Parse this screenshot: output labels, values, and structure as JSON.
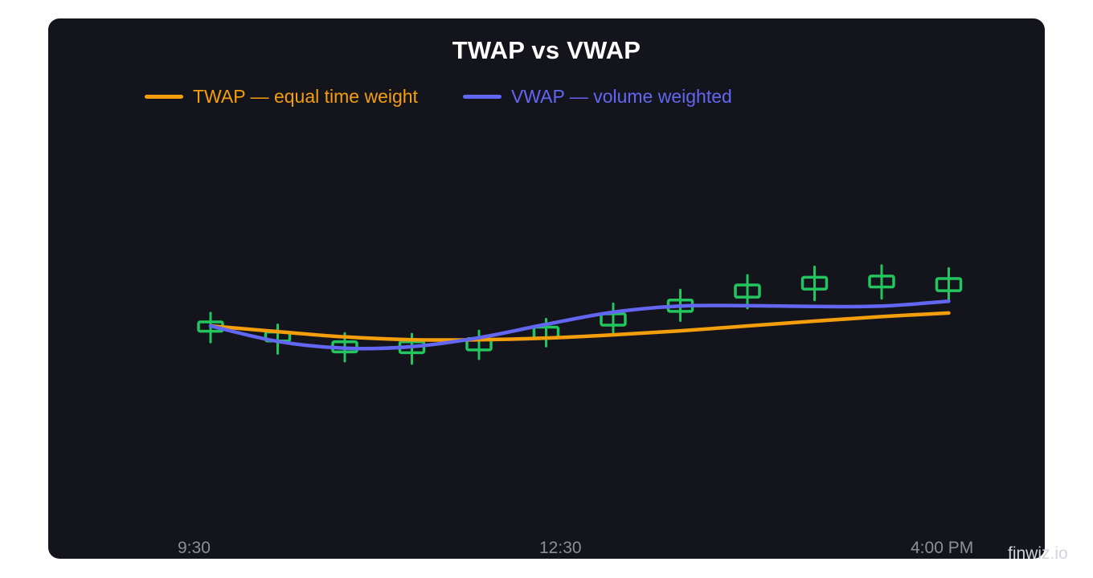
{
  "chart_data": {
    "type": "line",
    "title": "TWAP vs VWAP",
    "xlabel": "",
    "ylabel": "",
    "x_tick_labels": [
      "9:30",
      "12:30",
      "4:00 PM"
    ],
    "legend_position": "top-left",
    "grid": false,
    "ylim": [
      0,
      100
    ],
    "candles": {
      "color": "#22c55e",
      "values": [
        {
          "open": 50.3,
          "close": 48.0,
          "high": 52.5,
          "low": 45.3
        },
        {
          "open": 47.8,
          "close": 45.6,
          "high": 49.6,
          "low": 42.5
        },
        {
          "open": 45.4,
          "close": 42.9,
          "high": 47.5,
          "low": 40.6
        },
        {
          "open": 45.4,
          "close": 42.7,
          "high": 47.3,
          "low": 40.0
        },
        {
          "open": 46.2,
          "close": 43.4,
          "high": 48.1,
          "low": 41.2
        },
        {
          "open": 49.0,
          "close": 46.3,
          "high": 51.0,
          "low": 44.3
        },
        {
          "open": 52.3,
          "close": 49.5,
          "high": 54.8,
          "low": 47.3
        },
        {
          "open": 55.7,
          "close": 52.9,
          "high": 58.2,
          "low": 50.6
        },
        {
          "open": 59.4,
          "close": 56.4,
          "high": 61.8,
          "low": 53.7
        },
        {
          "open": 61.3,
          "close": 58.4,
          "high": 63.9,
          "low": 55.7
        },
        {
          "open": 61.6,
          "close": 58.9,
          "high": 64.2,
          "low": 56.1
        },
        {
          "open": 61.0,
          "close": 58.0,
          "high": 63.5,
          "low": 55.3
        }
      ]
    },
    "series": [
      {
        "name": "TWAP — equal time weight",
        "color": "#f59e0b",
        "values": [
          49.3,
          47.9,
          46.6,
          45.9,
          45.9,
          46.3,
          47.1,
          48.1,
          49.3,
          50.5,
          51.6,
          52.5
        ]
      },
      {
        "name": "VWAP — volume weighted",
        "color": "#6366f1",
        "values": [
          49.3,
          45.5,
          43.8,
          44.2,
          46.4,
          49.7,
          52.7,
          54.2,
          54.3,
          54.1,
          54.2,
          55.4
        ]
      }
    ]
  },
  "watermark": "finwiz.io"
}
